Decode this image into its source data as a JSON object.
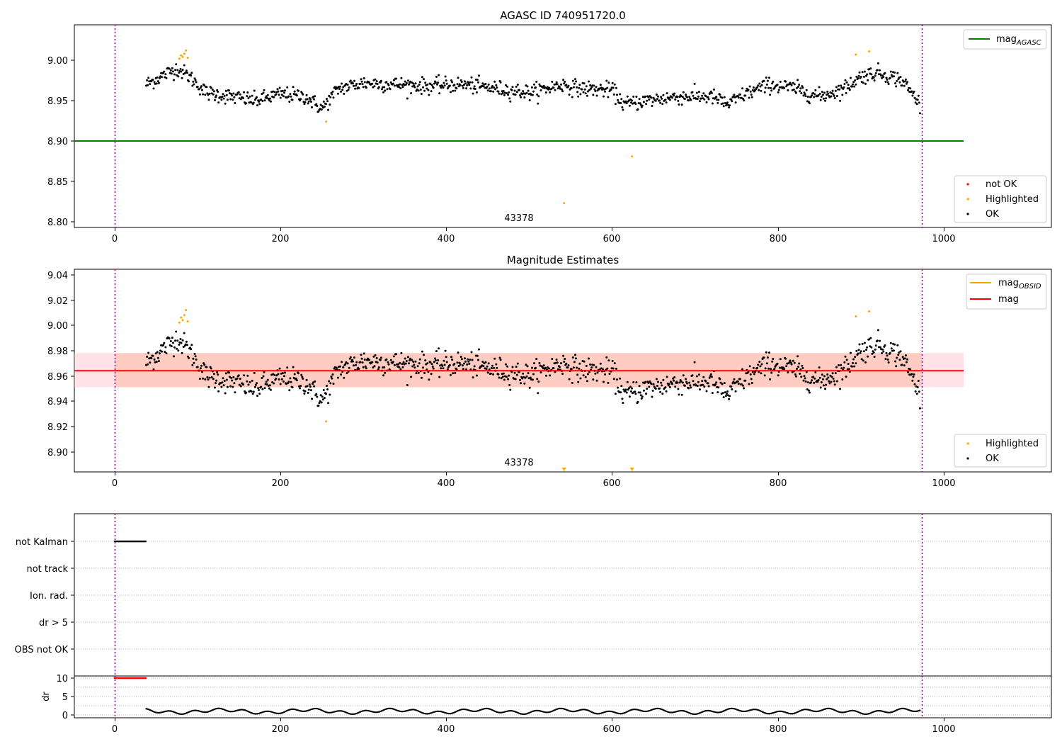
{
  "chart_data": [
    {
      "type": "scatter",
      "title": "AGASC ID 740951720.0",
      "xlim": [
        -50,
        1130
      ],
      "ylim": [
        8.795,
        9.04
      ],
      "xticks": [
        "0",
        "200",
        "400",
        "600",
        "800",
        "1000"
      ],
      "yticks": [
        "8.80",
        "8.85",
        "8.90",
        "8.95",
        "9.00"
      ],
      "annotation": "43378",
      "mag_agasc": 8.9,
      "vlines_x": [
        0,
        972
      ],
      "legend_lines": [
        {
          "name": "mag$_{AGASC}$",
          "color": "#008000"
        }
      ],
      "legend_points": [
        {
          "name": "not OK",
          "color": "#ff0000"
        },
        {
          "name": "Highlighted",
          "color": "#ffa500"
        },
        {
          "name": "OK",
          "color": "#000000"
        }
      ],
      "series_trend": {
        "name": "OK",
        "x": [
          38,
          60,
          75,
          90,
          110,
          140,
          170,
          200,
          230,
          250,
          270,
          300,
          340,
          380,
          420,
          460,
          500,
          540,
          560,
          600,
          615,
          640,
          680,
          720,
          740,
          760,
          790,
          820,
          850,
          880,
          900,
          920,
          950,
          972
        ],
        "y": [
          8.97,
          8.982,
          8.99,
          8.98,
          8.96,
          8.955,
          8.95,
          8.958,
          8.955,
          8.94,
          8.965,
          8.972,
          8.97,
          8.968,
          8.97,
          8.965,
          8.96,
          8.97,
          8.965,
          8.963,
          8.945,
          8.95,
          8.955,
          8.955,
          8.945,
          8.958,
          8.97,
          8.965,
          8.955,
          8.965,
          8.98,
          8.985,
          8.975,
          8.945
        ],
        "noise": 0.008
      },
      "highlighted": {
        "x": [
          78,
          80,
          82,
          84,
          86,
          88,
          255,
          542,
          624,
          894,
          910
        ],
        "y": [
          9.002,
          9.006,
          9.004,
          9.008,
          9.012,
          9.003,
          8.924,
          8.823,
          8.881,
          9.007,
          9.011
        ]
      }
    },
    {
      "type": "scatter",
      "title": "Magnitude Estimates",
      "xlim": [
        -50,
        1130
      ],
      "ylim": [
        8.885,
        9.045
      ],
      "xticks": [
        "0",
        "200",
        "400",
        "600",
        "800",
        "1000"
      ],
      "yticks": [
        "8.90",
        "8.92",
        "8.94",
        "8.96",
        "8.98",
        "9.00",
        "9.02",
        "9.04"
      ],
      "annotation": "43378",
      "mag": 8.964,
      "mag_band": [
        8.951,
        8.978
      ],
      "vlines_x": [
        0,
        972
      ],
      "legend_lines": [
        {
          "name": "mag$_{OBSID}$",
          "color": "#ffa500"
        },
        {
          "name": "mag",
          "color": "#ff0000"
        }
      ],
      "legend_points": [
        {
          "name": "Highlighted",
          "color": "#ffa500"
        },
        {
          "name": "OK",
          "color": "#000000"
        }
      ],
      "highlighted": {
        "x": [
          78,
          80,
          82,
          84,
          86,
          88,
          255,
          894,
          910
        ],
        "y": [
          9.002,
          9.006,
          9.004,
          9.008,
          9.012,
          9.003,
          8.924,
          9.007,
          9.011
        ]
      },
      "offscale_markers_x": [
        542,
        624
      ]
    },
    {
      "type": "scatter",
      "title": "",
      "xlim": [
        -50,
        1130
      ],
      "categories": [
        "not Kalman",
        "not track",
        "Ion. rad.",
        "dr > 5",
        "OBS not OK"
      ],
      "flag_not_kalman_x": [
        0,
        38
      ],
      "vlines_x": [
        0,
        972
      ]
    },
    {
      "type": "scatter",
      "title": "",
      "xlim": [
        -50,
        1130
      ],
      "ylim": [
        -0.5,
        10.5
      ],
      "ylabel": "dr",
      "xticks": [
        "0",
        "200",
        "400",
        "600",
        "800",
        "1000"
      ],
      "yticks": [
        "0",
        "5",
        "10"
      ],
      "dr_high_x": [
        0,
        38
      ],
      "dr_high_value": 10,
      "dr_range": [
        0.2,
        1.8
      ],
      "vlines_x": [
        0,
        972
      ]
    }
  ]
}
